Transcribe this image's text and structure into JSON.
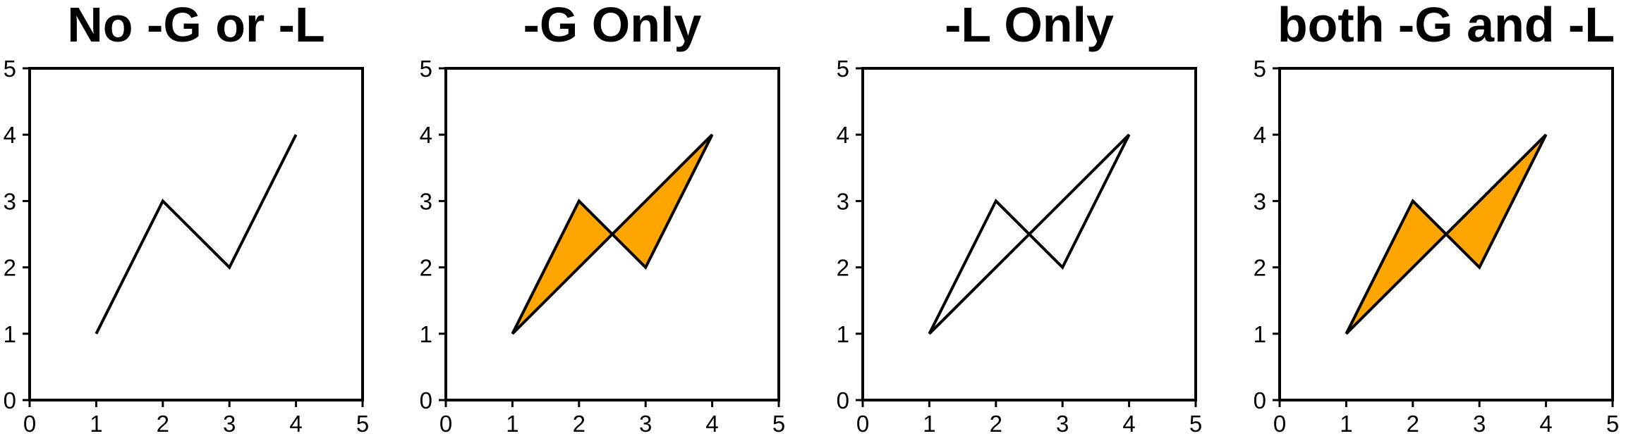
{
  "chart_data": [
    {
      "type": "line",
      "title": "No -G or -L",
      "xlim": [
        0,
        5
      ],
      "ylim": [
        0,
        5
      ],
      "xticks": [
        0,
        1,
        2,
        3,
        4,
        5
      ],
      "yticks": [
        0,
        1,
        2,
        3,
        4,
        5
      ],
      "grid": false,
      "series": [
        {
          "x": [
            1,
            2,
            3,
            4
          ],
          "y": [
            1,
            3,
            2,
            4
          ],
          "stroke": "#000000"
        }
      ]
    },
    {
      "type": "area",
      "title": "-G Only",
      "xlim": [
        0,
        5
      ],
      "ylim": [
        0,
        5
      ],
      "xticks": [
        0,
        1,
        2,
        3,
        4,
        5
      ],
      "yticks": [
        0,
        1,
        2,
        3,
        4,
        5
      ],
      "grid": false,
      "fill_color": "#ffa500",
      "series": [
        {
          "x": [
            1,
            2,
            3,
            4
          ],
          "y": [
            1,
            3,
            2,
            4
          ],
          "closed": true,
          "filled": true,
          "outline": true
        }
      ]
    },
    {
      "type": "line",
      "title": "-L Only",
      "xlim": [
        0,
        5
      ],
      "ylim": [
        0,
        5
      ],
      "xticks": [
        0,
        1,
        2,
        3,
        4,
        5
      ],
      "yticks": [
        0,
        1,
        2,
        3,
        4,
        5
      ],
      "grid": false,
      "series": [
        {
          "x": [
            1,
            2,
            3,
            4
          ],
          "y": [
            1,
            3,
            2,
            4
          ],
          "closed": true,
          "filled": false,
          "outline": true
        }
      ]
    },
    {
      "type": "area",
      "title": "both -G and -L",
      "xlim": [
        0,
        5
      ],
      "ylim": [
        0,
        5
      ],
      "xticks": [
        0,
        1,
        2,
        3,
        4,
        5
      ],
      "yticks": [
        0,
        1,
        2,
        3,
        4,
        5
      ],
      "grid": false,
      "fill_color": "#ffa500",
      "series": [
        {
          "x": [
            1,
            2,
            3,
            4
          ],
          "y": [
            1,
            3,
            2,
            4
          ],
          "closed": true,
          "filled": true,
          "outline": true
        }
      ]
    }
  ]
}
